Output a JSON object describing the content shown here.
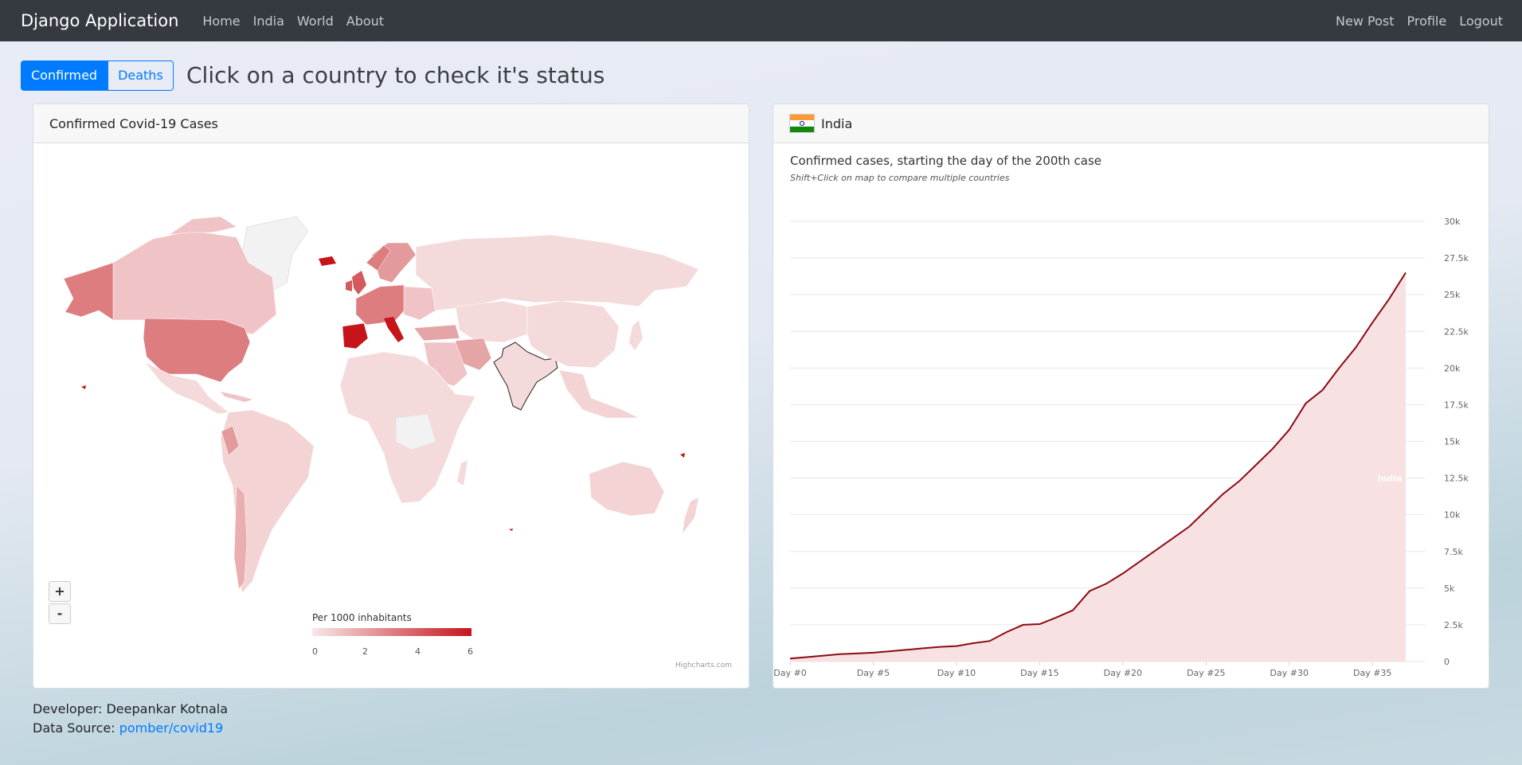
{
  "navbar": {
    "brand": "Django Application",
    "links": [
      "Home",
      "India",
      "World",
      "About"
    ],
    "right_links": [
      "New Post",
      "Profile",
      "Logout"
    ]
  },
  "toggle": {
    "confirmed": "Confirmed",
    "deaths": "Deaths"
  },
  "page_heading": "Click on a country to check it's status",
  "map_card": {
    "title": "Confirmed Covid-19 Cases",
    "zoom_in": "+",
    "zoom_out": "-",
    "legend_title": "Per 1000 inhabitants",
    "legend_ticks": [
      "0",
      "2",
      "4",
      "6"
    ],
    "credits": "Highcharts.com",
    "colors": {
      "low": "#f7e8e9",
      "high": "#c5151b",
      "none": "#f2f2f2"
    }
  },
  "chart_card": {
    "country": "India",
    "title": "Confirmed cases, starting the day of the 200th case",
    "subtitle": "Shift+Click on map to compare multiple countries"
  },
  "chart_data": {
    "type": "area",
    "title": "Confirmed cases, starting the day of the 200th case",
    "series": [
      {
        "name": "India",
        "color": "#8b0a12",
        "fill": "#f8e1e2",
        "values": [
          200,
          300,
          400,
          500,
          550,
          600,
          700,
          800,
          900,
          1000,
          1050,
          1250,
          1400,
          2000,
          2500,
          2550,
          3000,
          3500,
          4800,
          5300,
          6000,
          6800,
          7600,
          8400,
          9200,
          10300,
          11400,
          12300,
          13400,
          14500,
          15800,
          17600,
          18500,
          20000,
          21400,
          23100,
          24700,
          26500
        ]
      }
    ],
    "x_ticks": [
      "Day #0",
      "Day #5",
      "Day #10",
      "Day #15",
      "Day #20",
      "Day #25",
      "Day #30",
      "Day #35"
    ],
    "y_ticks": [
      "0",
      "2.5k",
      "5k",
      "7.5k",
      "10k",
      "12.5k",
      "15k",
      "17.5k",
      "20k",
      "22.5k",
      "25k",
      "27.5k",
      "30k"
    ],
    "ylim": [
      0,
      30000
    ],
    "xlim": [
      0,
      37
    ]
  },
  "footer": {
    "developer": "Developer: Deepankar Kotnala",
    "source_label": "Data Source: ",
    "source_link": "pomber/covid19"
  }
}
